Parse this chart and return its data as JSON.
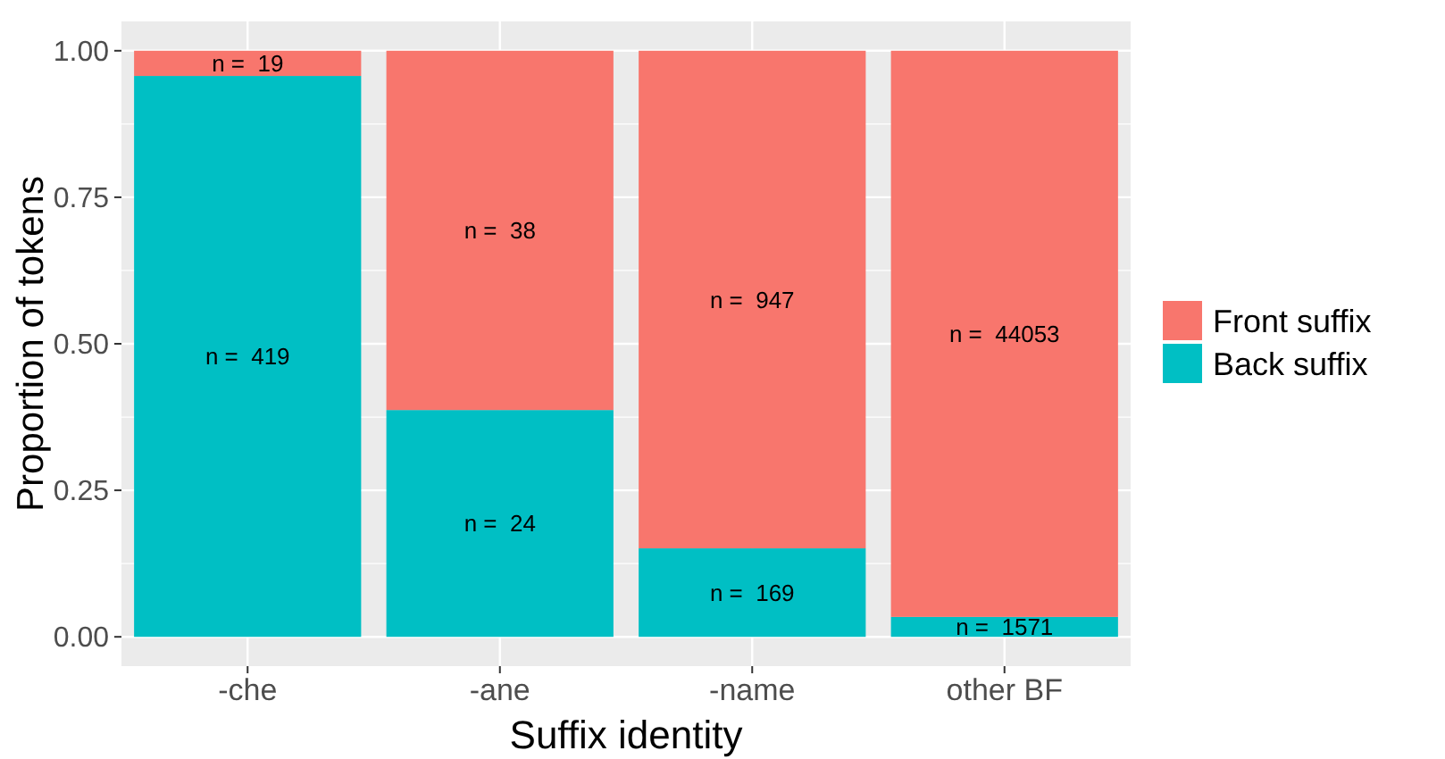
{
  "chart_data": {
    "type": "bar",
    "xlabel": "Suffix identity",
    "ylabel": "Proportion of tokens",
    "categories": [
      "-che",
      "-ane",
      "-name",
      "other BF"
    ],
    "series": [
      {
        "name": "Back suffix",
        "color": "#00bfc4",
        "values": [
          0.957,
          0.387,
          0.151,
          0.034
        ]
      },
      {
        "name": "Front suffix",
        "color": "#f8766d",
        "values": [
          0.043,
          0.613,
          0.849,
          0.966
        ]
      }
    ],
    "annotations": [
      "n =  419",
      "n =  19",
      "n =  24",
      "n =  38",
      "n =  169",
      "n =  947",
      "n =  1571",
      "n =  44053"
    ],
    "stacked": true,
    "ylim": [
      -0.05,
      1.05
    ],
    "yticks": [
      {
        "value": 0,
        "label": "0.00"
      },
      {
        "value": 0.25,
        "label": "0.25"
      },
      {
        "value": 0.5,
        "label": "0.50"
      },
      {
        "value": 0.75,
        "label": "0.75"
      },
      {
        "value": 1,
        "label": "1.00"
      }
    ],
    "grid": true,
    "legend": "right"
  }
}
